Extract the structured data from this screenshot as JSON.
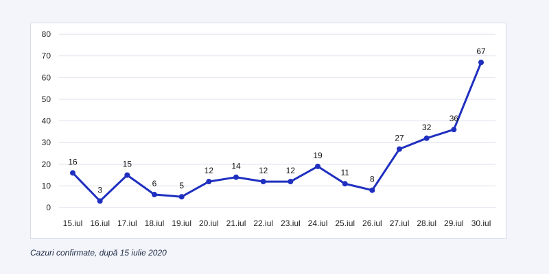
{
  "chart_data": {
    "type": "line",
    "categories": [
      "15.iul",
      "16.iul",
      "17.iul",
      "18.iul",
      "19.iul",
      "20.iul",
      "21.iul",
      "22.iul",
      "23.iul",
      "24.iul",
      "25.iul",
      "26.iul",
      "27.iul",
      "28.iul",
      "29.iul",
      "30.iul"
    ],
    "series": [
      {
        "values": [
          16,
          3,
          15,
          6,
          5,
          12,
          14,
          12,
          12,
          19,
          11,
          8,
          27,
          32,
          36,
          67
        ]
      }
    ],
    "yticks": [
      "0",
      "10",
      "20",
      "30",
      "40",
      "50",
      "60",
      "70",
      "80"
    ],
    "ylim": [
      0,
      80
    ],
    "grid": true,
    "legend": "none",
    "line_color": "#1f2fbf"
  },
  "caption": "Cazuri confirmate, după 15 iulie 2020"
}
